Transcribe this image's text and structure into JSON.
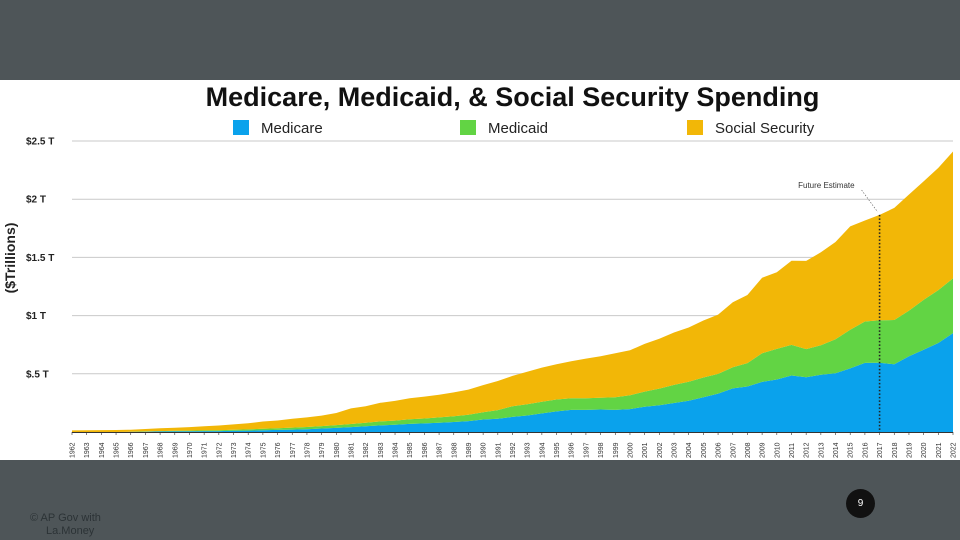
{
  "slide": {
    "page_number": "9",
    "copyright_line1": "© AP Gov with",
    "copyright_line2": "La.Money"
  },
  "chart_data": {
    "type": "area",
    "stacked": true,
    "title": "Medicare, Medicaid, & Social Security Spending",
    "xlabel": "",
    "ylabel": "($Trillions)",
    "ylim": [
      0,
      2.5
    ],
    "y_ticks": [
      {
        "value": 0.5,
        "label": "$.5 T"
      },
      {
        "value": 1.0,
        "label": "$1 T"
      },
      {
        "value": 1.5,
        "label": "$1.5 T"
      },
      {
        "value": 2.0,
        "label": "$2 T"
      },
      {
        "value": 2.5,
        "label": "$2.5 T"
      }
    ],
    "grid": true,
    "legend_position": "top",
    "colors": {
      "Medicare": "#0aa2ec",
      "Medicaid": "#62d444",
      "Social Security": "#f2b707"
    },
    "x": [
      "1962",
      "1963",
      "1964",
      "1965",
      "1966",
      "1967",
      "1968",
      "1969",
      "1970",
      "1971",
      "1972",
      "1973",
      "1974",
      "1975",
      "1976",
      "1977",
      "1978",
      "1979",
      "1980",
      "1981",
      "1982",
      "1983",
      "1984",
      "1985",
      "1986",
      "1987",
      "1988",
      "1989",
      "1990",
      "1991",
      "1992",
      "1993",
      "1994",
      "1995",
      "1996",
      "1997",
      "1998",
      "1999",
      "2000",
      "2001",
      "2002",
      "2003",
      "2004",
      "2005",
      "2006",
      "2007",
      "2008",
      "2009",
      "2010",
      "2011",
      "2012",
      "2013",
      "2014",
      "2015",
      "2016",
      "2017",
      "2018",
      "2019",
      "2020",
      "2021",
      "2022"
    ],
    "series": [
      {
        "name": "Medicare",
        "values": [
          0.0,
          0.0,
          0.0,
          0.0,
          0.001,
          0.003,
          0.005,
          0.006,
          0.007,
          0.008,
          0.008,
          0.01,
          0.012,
          0.015,
          0.018,
          0.021,
          0.024,
          0.03,
          0.035,
          0.042,
          0.05,
          0.057,
          0.062,
          0.07,
          0.074,
          0.079,
          0.086,
          0.094,
          0.107,
          0.114,
          0.13,
          0.142,
          0.16,
          0.177,
          0.19,
          0.19,
          0.193,
          0.19,
          0.197,
          0.217,
          0.23,
          0.249,
          0.269,
          0.298,
          0.33,
          0.375,
          0.391,
          0.43,
          0.451,
          0.485,
          0.471,
          0.492,
          0.505,
          0.546,
          0.594,
          0.595,
          0.582,
          0.651,
          0.707,
          0.765,
          0.85
        ]
      },
      {
        "name": "Medicaid",
        "values": [
          0.0,
          0.0,
          0.0,
          0.0,
          0.001,
          0.002,
          0.003,
          0.004,
          0.005,
          0.006,
          0.007,
          0.009,
          0.01,
          0.013,
          0.015,
          0.017,
          0.019,
          0.021,
          0.024,
          0.027,
          0.03,
          0.034,
          0.036,
          0.04,
          0.042,
          0.046,
          0.05,
          0.055,
          0.062,
          0.074,
          0.092,
          0.096,
          0.1,
          0.102,
          0.1,
          0.1,
          0.102,
          0.108,
          0.118,
          0.13,
          0.143,
          0.156,
          0.163,
          0.17,
          0.169,
          0.182,
          0.201,
          0.246,
          0.263,
          0.263,
          0.241,
          0.253,
          0.292,
          0.333,
          0.355,
          0.365,
          0.38,
          0.392,
          0.428,
          0.454,
          0.47
        ]
      },
      {
        "name": "Social Security",
        "values": [
          0.014,
          0.015,
          0.016,
          0.017,
          0.018,
          0.021,
          0.024,
          0.027,
          0.03,
          0.035,
          0.041,
          0.046,
          0.053,
          0.062,
          0.066,
          0.075,
          0.082,
          0.09,
          0.104,
          0.134,
          0.142,
          0.16,
          0.169,
          0.18,
          0.188,
          0.195,
          0.204,
          0.215,
          0.234,
          0.25,
          0.26,
          0.279,
          0.293,
          0.303,
          0.317,
          0.341,
          0.356,
          0.378,
          0.387,
          0.41,
          0.428,
          0.45,
          0.466,
          0.49,
          0.51,
          0.558,
          0.585,
          0.649,
          0.659,
          0.724,
          0.758,
          0.799,
          0.835,
          0.887,
          0.868,
          0.905,
          0.963,
          0.997,
          1.018,
          1.05,
          1.09
        ]
      }
    ],
    "annotations": [
      {
        "text": "Future Estimate",
        "x": "2017"
      }
    ]
  }
}
